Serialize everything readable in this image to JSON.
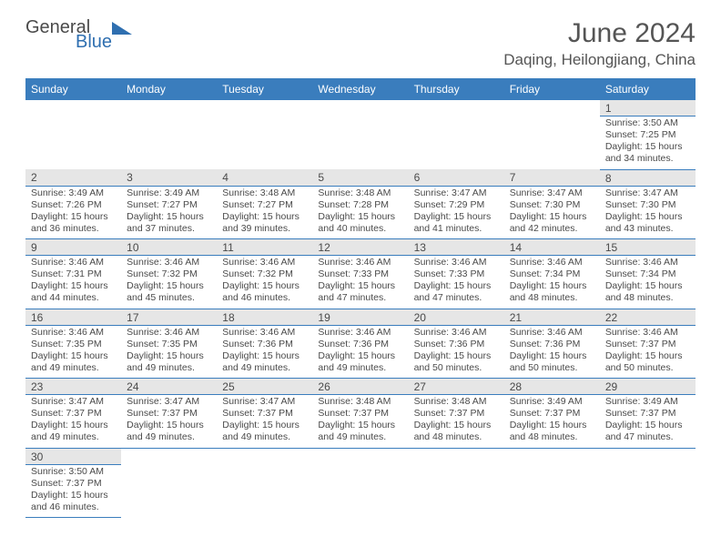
{
  "brand": {
    "word1": "General",
    "word2": "Blue"
  },
  "title": "June 2024",
  "location": "Daqing, Heilongjiang, China",
  "colors": {
    "header_bg": "#3a7dbd",
    "header_fg": "#ffffff",
    "daynum_bg": "#e6e6e6",
    "border": "#3a7dbd",
    "text": "#4a4a4a",
    "brand_accent": "#2f6fb0"
  },
  "day_headers": [
    "Sunday",
    "Monday",
    "Tuesday",
    "Wednesday",
    "Thursday",
    "Friday",
    "Saturday"
  ],
  "weeks": [
    [
      null,
      null,
      null,
      null,
      null,
      null,
      {
        "n": "1",
        "r": "3:50 AM",
        "s": "7:25 PM",
        "d": "15 hours and 34 minutes."
      }
    ],
    [
      {
        "n": "2",
        "r": "3:49 AM",
        "s": "7:26 PM",
        "d": "15 hours and 36 minutes."
      },
      {
        "n": "3",
        "r": "3:49 AM",
        "s": "7:27 PM",
        "d": "15 hours and 37 minutes."
      },
      {
        "n": "4",
        "r": "3:48 AM",
        "s": "7:27 PM",
        "d": "15 hours and 39 minutes."
      },
      {
        "n": "5",
        "r": "3:48 AM",
        "s": "7:28 PM",
        "d": "15 hours and 40 minutes."
      },
      {
        "n": "6",
        "r": "3:47 AM",
        "s": "7:29 PM",
        "d": "15 hours and 41 minutes."
      },
      {
        "n": "7",
        "r": "3:47 AM",
        "s": "7:30 PM",
        "d": "15 hours and 42 minutes."
      },
      {
        "n": "8",
        "r": "3:47 AM",
        "s": "7:30 PM",
        "d": "15 hours and 43 minutes."
      }
    ],
    [
      {
        "n": "9",
        "r": "3:46 AM",
        "s": "7:31 PM",
        "d": "15 hours and 44 minutes."
      },
      {
        "n": "10",
        "r": "3:46 AM",
        "s": "7:32 PM",
        "d": "15 hours and 45 minutes."
      },
      {
        "n": "11",
        "r": "3:46 AM",
        "s": "7:32 PM",
        "d": "15 hours and 46 minutes."
      },
      {
        "n": "12",
        "r": "3:46 AM",
        "s": "7:33 PM",
        "d": "15 hours and 47 minutes."
      },
      {
        "n": "13",
        "r": "3:46 AM",
        "s": "7:33 PM",
        "d": "15 hours and 47 minutes."
      },
      {
        "n": "14",
        "r": "3:46 AM",
        "s": "7:34 PM",
        "d": "15 hours and 48 minutes."
      },
      {
        "n": "15",
        "r": "3:46 AM",
        "s": "7:34 PM",
        "d": "15 hours and 48 minutes."
      }
    ],
    [
      {
        "n": "16",
        "r": "3:46 AM",
        "s": "7:35 PM",
        "d": "15 hours and 49 minutes."
      },
      {
        "n": "17",
        "r": "3:46 AM",
        "s": "7:35 PM",
        "d": "15 hours and 49 minutes."
      },
      {
        "n": "18",
        "r": "3:46 AM",
        "s": "7:36 PM",
        "d": "15 hours and 49 minutes."
      },
      {
        "n": "19",
        "r": "3:46 AM",
        "s": "7:36 PM",
        "d": "15 hours and 49 minutes."
      },
      {
        "n": "20",
        "r": "3:46 AM",
        "s": "7:36 PM",
        "d": "15 hours and 50 minutes."
      },
      {
        "n": "21",
        "r": "3:46 AM",
        "s": "7:36 PM",
        "d": "15 hours and 50 minutes."
      },
      {
        "n": "22",
        "r": "3:46 AM",
        "s": "7:37 PM",
        "d": "15 hours and 50 minutes."
      }
    ],
    [
      {
        "n": "23",
        "r": "3:47 AM",
        "s": "7:37 PM",
        "d": "15 hours and 49 minutes."
      },
      {
        "n": "24",
        "r": "3:47 AM",
        "s": "7:37 PM",
        "d": "15 hours and 49 minutes."
      },
      {
        "n": "25",
        "r": "3:47 AM",
        "s": "7:37 PM",
        "d": "15 hours and 49 minutes."
      },
      {
        "n": "26",
        "r": "3:48 AM",
        "s": "7:37 PM",
        "d": "15 hours and 49 minutes."
      },
      {
        "n": "27",
        "r": "3:48 AM",
        "s": "7:37 PM",
        "d": "15 hours and 48 minutes."
      },
      {
        "n": "28",
        "r": "3:49 AM",
        "s": "7:37 PM",
        "d": "15 hours and 48 minutes."
      },
      {
        "n": "29",
        "r": "3:49 AM",
        "s": "7:37 PM",
        "d": "15 hours and 47 minutes."
      }
    ],
    [
      {
        "n": "30",
        "r": "3:50 AM",
        "s": "7:37 PM",
        "d": "15 hours and 46 minutes."
      },
      null,
      null,
      null,
      null,
      null,
      null
    ]
  ],
  "labels": {
    "sunrise": "Sunrise:",
    "sunset": "Sunset:",
    "daylight": "Daylight:"
  }
}
